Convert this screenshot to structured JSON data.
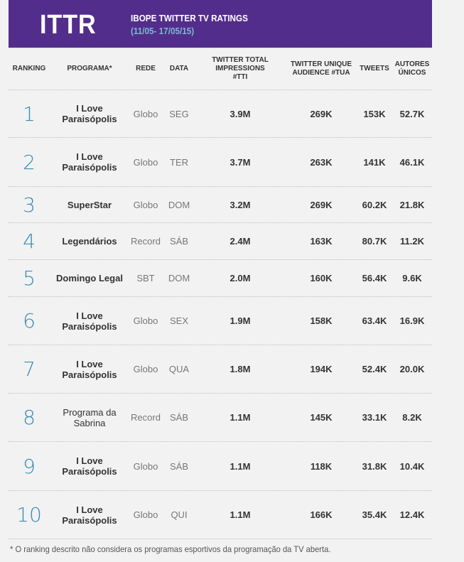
{
  "banner": {
    "logo": "ITTR",
    "title": "IBOPE TWITTER TV RATINGS",
    "period": "(11/05- 17/05/15)",
    "bg_color": "#532d8c",
    "period_color": "#7fb8cf"
  },
  "table": {
    "headers": {
      "ranking": "RANKING",
      "programa": "PROGRAMA*",
      "rede": "REDE",
      "data": "DATA",
      "tti": "TWITTER TOTAL IMPRESSIONS #TTI",
      "tua": "TWITTER UNIQUE AUDIENCE #TUA",
      "tweets": "TWEETS",
      "autores": "AUTORES ÚNICOS"
    },
    "rows": [
      {
        "rank": "1",
        "programa": "I Love Paraisópolis",
        "rede": "Globo",
        "data": "SEG",
        "tti": "3.9M",
        "tua": "269K",
        "tweets": "153K",
        "autores": "52.7K"
      },
      {
        "rank": "2",
        "programa": "I Love Paraisópolis",
        "rede": "Globo",
        "data": "TER",
        "tti": "3.7M",
        "tua": "263K",
        "tweets": "141K",
        "autores": "46.1K"
      },
      {
        "rank": "3",
        "programa": "SuperStar",
        "rede": "Globo",
        "data": "DOM",
        "tti": "3.2M",
        "tua": "269K",
        "tweets": "60.2K",
        "autores": "21.8K"
      },
      {
        "rank": "4",
        "programa": "Legendários",
        "rede": "Record",
        "data": "SÁB",
        "tti": "2.4M",
        "tua": "163K",
        "tweets": "80.7K",
        "autores": "11.2K"
      },
      {
        "rank": "5",
        "programa": "Domingo Legal",
        "rede": "SBT",
        "data": "DOM",
        "tti": "2.0M",
        "tua": "160K",
        "tweets": "56.4K",
        "autores": "9.6K"
      },
      {
        "rank": "6",
        "programa": "I Love Paraisópolis",
        "rede": "Globo",
        "data": "SEX",
        "tti": "1.9M",
        "tua": "158K",
        "tweets": "63.4K",
        "autores": "16.9K"
      },
      {
        "rank": "7",
        "programa": "I Love Paraisópolis",
        "rede": "Globo",
        "data": "QUA",
        "tti": "1.8M",
        "tua": "194K",
        "tweets": "52.4K",
        "autores": "20.0K"
      },
      {
        "rank": "8",
        "programa": "Programa da Sabrina",
        "rede": "Record",
        "data": "SÁB",
        "tti": "1.1M",
        "tua": "145K",
        "tweets": "33.1K",
        "autores": "8.2K"
      },
      {
        "rank": "9",
        "programa": "I Love Paraisópolis",
        "rede": "Globo",
        "data": "SÁB",
        "tti": "1.1M",
        "tua": "118K",
        "tweets": "31.8K",
        "autores": "10.4K"
      },
      {
        "rank": "10",
        "programa": "I Love Paraisópolis",
        "rede": "Globo",
        "data": "QUI",
        "tti": "1.1M",
        "tua": "166K",
        "tweets": "35.4K",
        "autores": "12.4K"
      }
    ]
  },
  "footnote": "* O ranking descrito não considera os programas esportivos da programação da TV aberta."
}
